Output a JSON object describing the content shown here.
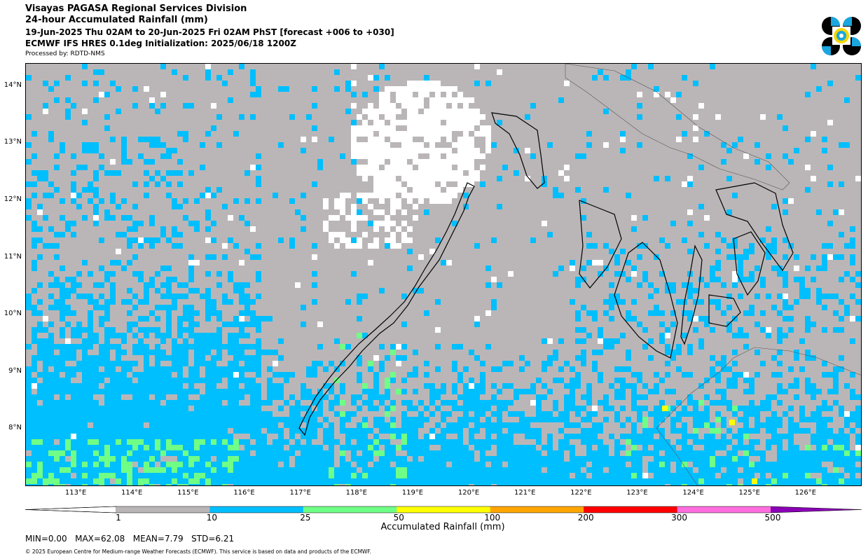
{
  "header": {
    "line1": "Visayas PAGASA Regional Services Division",
    "line2": "24-hour Accumulated Rainfall (mm)",
    "line3": "19-Jun-2025 Thu 02AM to 20-Jun-2025 Fri 02AM PhST [forecast +006 to +030]",
    "line4": "ECMWF IFS HRES 0.1deg Initialization: 2025/06/18 1200Z",
    "processed_by": "Processed by: RDTD-NMS"
  },
  "logo": {
    "icon": "pagasa-logo",
    "colors": [
      "#000000",
      "#1aa7e0",
      "#f5d800"
    ]
  },
  "map": {
    "extent": {
      "lon_min": 112.1,
      "lon_max": 127.0,
      "lat_min": 7.0,
      "lat_max": 14.4
    },
    "lat_ticks": [
      "14°N",
      "13°N",
      "12°N",
      "11°N",
      "10°N",
      "9°N",
      "8°N"
    ],
    "lat_values": [
      14,
      13,
      12,
      11,
      10,
      9,
      8
    ],
    "lon_ticks": [
      "113°E",
      "114°E",
      "115°E",
      "116°E",
      "117°E",
      "118°E",
      "119°E",
      "120°E",
      "121°E",
      "122°E",
      "123°E",
      "124°E",
      "125°E",
      "126°E"
    ],
    "lon_values": [
      113,
      114,
      115,
      116,
      117,
      118,
      119,
      120,
      121,
      122,
      123,
      124,
      125,
      126
    ],
    "ocean_color": "#bab6b7",
    "no_rain_color": "#ffffff"
  },
  "colorbar": {
    "label": "Accumulated Rainfall (mm)",
    "ticks": [
      "1",
      "10",
      "25",
      "50",
      "100",
      "200",
      "300",
      "500"
    ],
    "colors": [
      "#ffffff",
      "#bab6b7",
      "#00bfff",
      "#6fff86",
      "#ffff00",
      "#ffa500",
      "#ff0000",
      "#ff6ede",
      "#8b00b6"
    ]
  },
  "stats": {
    "min": "MIN=0.00",
    "max": "MAX=62.08",
    "mean": "MEAN=7.79",
    "std": "STD=6.21"
  },
  "footer": {
    "copyright": "© 2025 European Centre for Medium-range Weather Forecasts (ECMWF). This service is based on data and products of the ECMWF."
  }
}
